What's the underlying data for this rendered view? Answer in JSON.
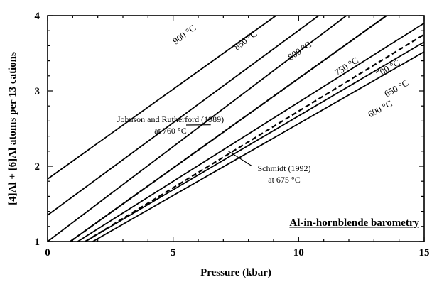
{
  "chart_data": {
    "type": "line",
    "xlabel": "Pressure (kbar)",
    "ylabel": "[4]Al + [6]Al atoms per 13 cations",
    "xlim": [
      0,
      15
    ],
    "ylim": [
      1,
      4
    ],
    "x_ticks": [
      "0",
      "5",
      "10",
      "15"
    ],
    "y_ticks": [
      "1",
      "2",
      "3",
      "4"
    ],
    "grid": false,
    "box_label": "Al-in-hornblende barometry",
    "series": [
      {
        "name": "900 °C",
        "style": "solid",
        "x": [
          0,
          9.1
        ],
        "y": [
          1.83,
          4.0
        ]
      },
      {
        "name": "850 °C",
        "style": "solid",
        "x": [
          0,
          10.8
        ],
        "y": [
          1.35,
          4.0
        ]
      },
      {
        "name": "800 °C",
        "style": "solid",
        "x": [
          0,
          11.9
        ],
        "y": [
          1.0,
          4.0
        ]
      },
      {
        "name": "750 °C",
        "style": "solid",
        "x": [
          0.9,
          13.5
        ],
        "y": [
          1.0,
          4.0
        ]
      },
      {
        "name": "700 °C",
        "style": "solid",
        "x": [
          1.2,
          15.0
        ],
        "y": [
          1.0,
          3.9
        ]
      },
      {
        "name": "650 °C",
        "style": "solid",
        "x": [
          1.5,
          15.0
        ],
        "y": [
          1.0,
          3.65
        ]
      },
      {
        "name": "600 °C",
        "style": "solid",
        "x": [
          1.8,
          15.0
        ],
        "y": [
          1.0,
          3.52
        ]
      },
      {
        "name": "",
        "style": "dashed",
        "x": [
          0.9,
          13.5
        ],
        "y": [
          1.0,
          4.0
        ]
      },
      {
        "name": "",
        "style": "dashed",
        "x": [
          1.5,
          15.0
        ],
        "y": [
          1.0,
          3.75
        ]
      }
    ],
    "annotations": [
      {
        "text_line1": "Johnson and Rutherford (1989)",
        "text_line2": "at 760 °C",
        "arrow_to": [
          6.5,
          2.55
        ]
      },
      {
        "text_line1": "Schmidt (1992)",
        "text_line2": "at 675 °C",
        "arrow_to": [
          7.2,
          2.2
        ]
      }
    ]
  }
}
